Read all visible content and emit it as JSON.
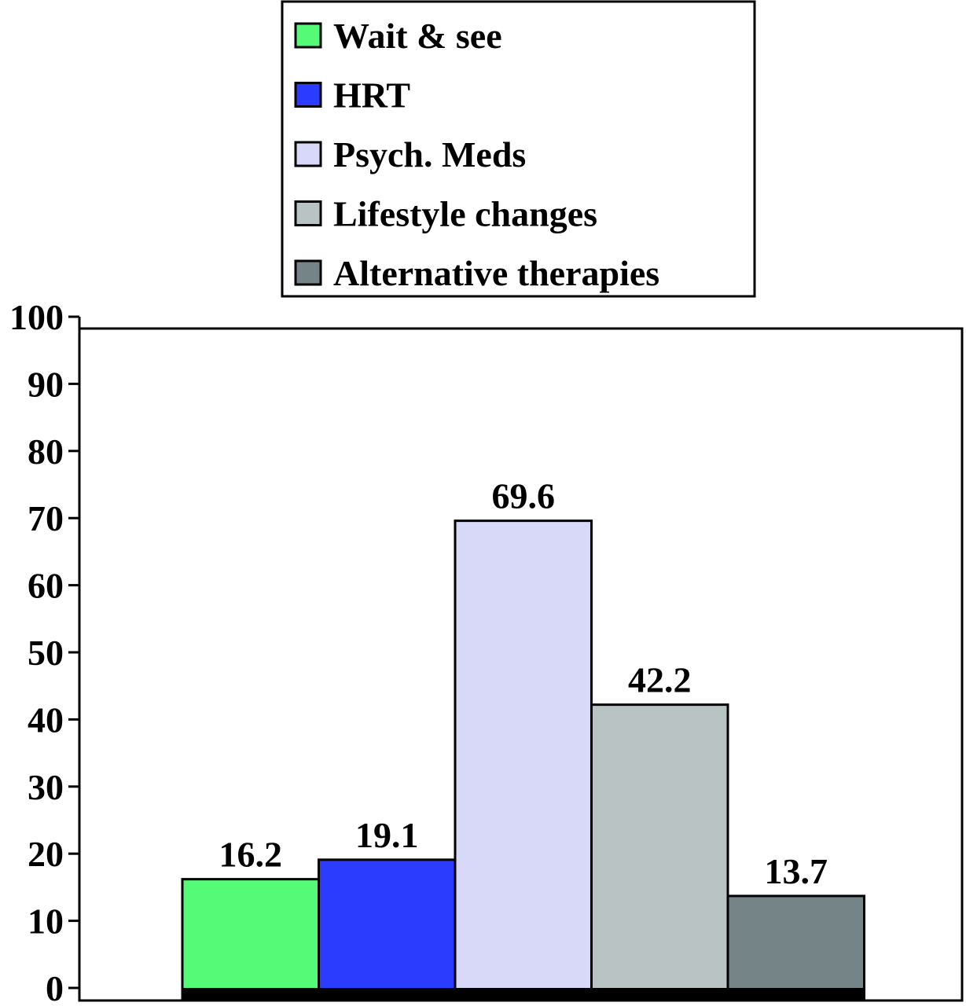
{
  "chart_data": {
    "type": "bar",
    "categories": [
      "Wait & see",
      "HRT",
      "Psych. Meds",
      "Lifestyle changes",
      "Alternative therapies"
    ],
    "values": [
      16.2,
      19.1,
      69.6,
      42.2,
      13.7
    ],
    "value_labels": [
      "16.2",
      "19.1",
      "69.6",
      "42.2",
      "13.7"
    ],
    "colors": [
      "#55fb77",
      "#2b3cff",
      "#d8d9f8",
      "#b9c3c3",
      "#748487"
    ],
    "title": "",
    "xlabel": "",
    "ylabel": "",
    "ylim": [
      0,
      100
    ],
    "yticks": [
      0,
      10,
      20,
      30,
      40,
      50,
      60,
      70,
      80,
      90,
      100
    ],
    "ytick_labels": [
      "0",
      "10",
      "20",
      "30",
      "40",
      "50",
      "60",
      "70",
      "80",
      "90",
      "100"
    ],
    "legend_position": "top-center",
    "grid": false
  }
}
